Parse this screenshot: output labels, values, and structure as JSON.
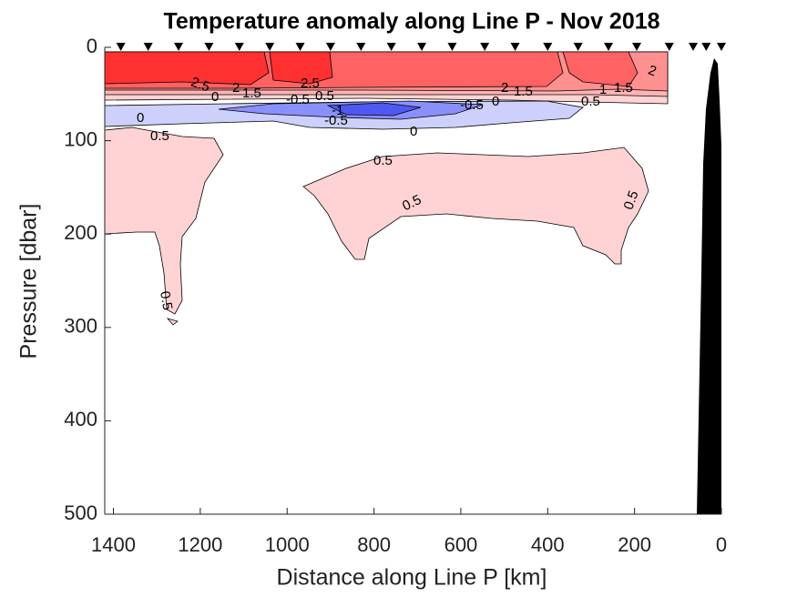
{
  "chart_data": {
    "type": "contour",
    "title": "Temperature anomaly along Line P - Nov 2018",
    "xlabel": "Distance along Line P [km]",
    "ylabel": "Pressure [dbar]",
    "xlim": [
      1420,
      0
    ],
    "ylim": [
      0,
      500
    ],
    "xticks": [
      1400,
      1200,
      1000,
      800,
      600,
      400,
      200,
      0
    ],
    "yticks": [
      0,
      100,
      200,
      300,
      400,
      500
    ],
    "levels": [
      -1,
      -0.5,
      0,
      0.5,
      1,
      1.5,
      2,
      2.5
    ],
    "colors": [
      "#5058f2",
      "#8a90fb",
      "#cdd0fa",
      "#ffffff",
      "#ffd3d3",
      "#ffb4b4",
      "#ff9090",
      "#ff6262",
      "#ff3030"
    ],
    "stations": [
      1383,
      1320,
      1250,
      1180,
      1110,
      1040,
      970,
      900,
      830,
      760,
      690,
      620,
      545,
      475,
      400,
      330,
      260,
      195,
      120,
      65,
      35,
      0
    ],
    "station_color": "#000000"
  }
}
